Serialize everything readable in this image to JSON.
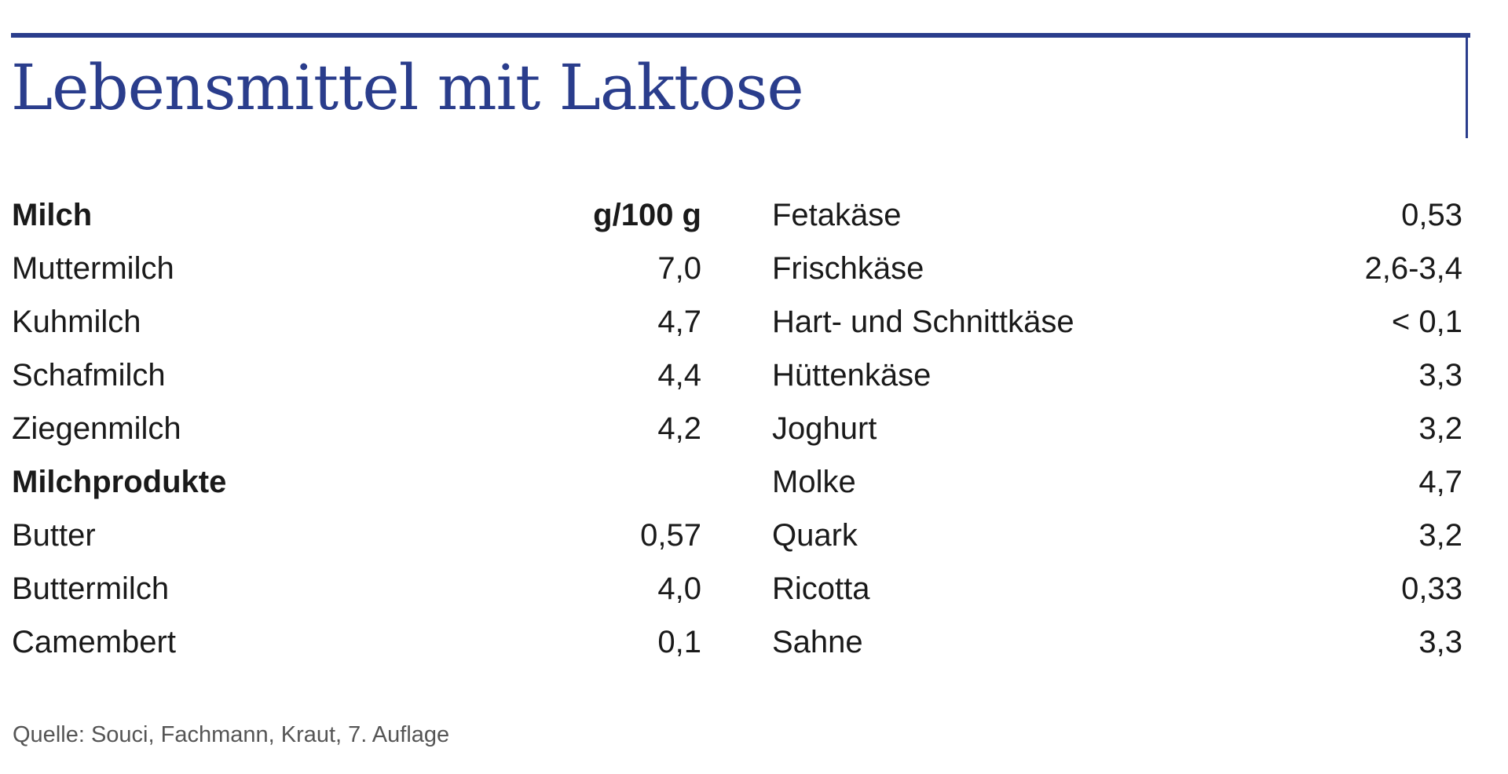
{
  "title": "Lebensmittel mit Laktose",
  "colors": {
    "accent": "#2a3d8c"
  },
  "left_column": [
    {
      "name": "Milch",
      "value": "g/100 g",
      "header": true
    },
    {
      "name": "Muttermilch",
      "value": "7,0"
    },
    {
      "name": "Kuhmilch",
      "value": "4,7"
    },
    {
      "name": "Schafmilch",
      "value": "4,4"
    },
    {
      "name": "Ziegenmilch",
      "value": "4,2"
    },
    {
      "name": "Milchprodukte",
      "value": "",
      "header": true
    },
    {
      "name": "Butter",
      "value": "0,57"
    },
    {
      "name": "Buttermilch",
      "value": "4,0"
    },
    {
      "name": "Camembert",
      "value": "0,1"
    }
  ],
  "right_column": [
    {
      "name": "Fetakäse",
      "value": "0,53"
    },
    {
      "name": "Frischkäse",
      "value": "2,6-3,4"
    },
    {
      "name": "Hart- und Schnittkäse",
      "value": "< 0,1"
    },
    {
      "name": "Hüttenkäse",
      "value": "3,3"
    },
    {
      "name": "Joghurt",
      "value": "3,2"
    },
    {
      "name": "Molke",
      "value": "4,7"
    },
    {
      "name": "Quark",
      "value": "3,2"
    },
    {
      "name": "Ricotta",
      "value": "0,33"
    },
    {
      "name": "Sahne",
      "value": "3,3"
    }
  ],
  "source": "Quelle: Souci, Fachmann, Kraut, 7. Auflage"
}
